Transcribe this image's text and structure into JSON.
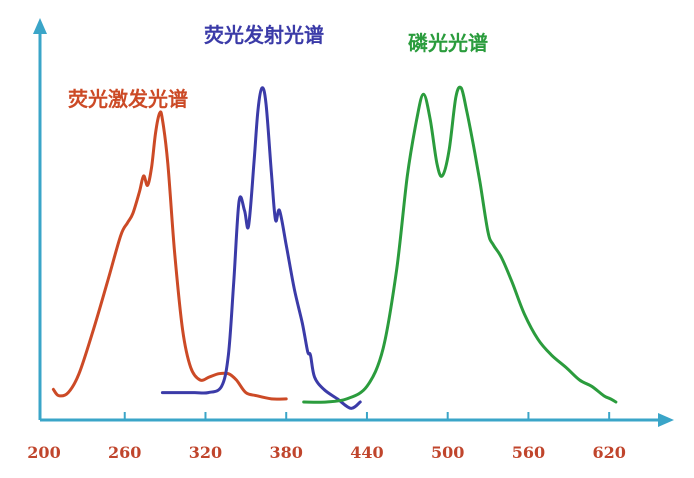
{
  "chart_data": {
    "type": "line",
    "title": "",
    "xlabel": "",
    "ylabel": "",
    "xlim": [
      200,
      660
    ],
    "ylim": [
      0,
      100
    ],
    "grid": false,
    "x_ticks": [
      200,
      260,
      320,
      380,
      440,
      500,
      560,
      620
    ],
    "series": [
      {
        "name": "荧光激发光谱",
        "color": "#cc4a26",
        "points": [
          [
            207,
            4
          ],
          [
            211,
            2
          ],
          [
            218,
            3
          ],
          [
            226,
            9
          ],
          [
            236,
            22
          ],
          [
            247,
            38
          ],
          [
            257,
            53
          ],
          [
            262,
            57
          ],
          [
            266,
            60
          ],
          [
            271,
            67
          ],
          [
            274,
            72
          ],
          [
            277,
            69
          ],
          [
            280,
            75
          ],
          [
            283,
            86
          ],
          [
            286,
            92
          ],
          [
            288,
            90
          ],
          [
            292,
            76
          ],
          [
            297,
            48
          ],
          [
            303,
            23
          ],
          [
            309,
            11
          ],
          [
            316,
            7
          ],
          [
            323,
            8
          ],
          [
            330,
            9
          ],
          [
            337,
            9
          ],
          [
            343,
            7
          ],
          [
            350,
            3
          ],
          [
            358,
            2
          ],
          [
            369,
            1
          ],
          [
            380,
            1
          ]
        ]
      },
      {
        "name": "荧光发射光谱",
        "color": "#3b3ba8",
        "points": [
          [
            288,
            3
          ],
          [
            300,
            3
          ],
          [
            312,
            3
          ],
          [
            322,
            3
          ],
          [
            332,
            5
          ],
          [
            337,
            15
          ],
          [
            341,
            38
          ],
          [
            345,
            64
          ],
          [
            349,
            61
          ],
          [
            352,
            56
          ],
          [
            356,
            76
          ],
          [
            359,
            93
          ],
          [
            362,
            100
          ],
          [
            365,
            95
          ],
          [
            369,
            73
          ],
          [
            372,
            58
          ],
          [
            375,
            61
          ],
          [
            380,
            50
          ],
          [
            386,
            36
          ],
          [
            392,
            25
          ],
          [
            396,
            16
          ],
          [
            398,
            15
          ],
          [
            401,
            8
          ],
          [
            408,
            4
          ],
          [
            418,
            1
          ],
          [
            428,
            -2
          ],
          [
            435,
            0
          ]
        ]
      },
      {
        "name": "磷光光谱",
        "color": "#2b9c3d",
        "points": [
          [
            393,
            0
          ],
          [
            410,
            0
          ],
          [
            425,
            1
          ],
          [
            440,
            5
          ],
          [
            452,
            17
          ],
          [
            462,
            42
          ],
          [
            470,
            72
          ],
          [
            477,
            90
          ],
          [
            482,
            98
          ],
          [
            487,
            90
          ],
          [
            492,
            76
          ],
          [
            496,
            72
          ],
          [
            501,
            80
          ],
          [
            506,
            97
          ],
          [
            510,
            100
          ],
          [
            514,
            93
          ],
          [
            519,
            82
          ],
          [
            524,
            70
          ],
          [
            530,
            54
          ],
          [
            534,
            50
          ],
          [
            540,
            46
          ],
          [
            548,
            38
          ],
          [
            557,
            28
          ],
          [
            567,
            20
          ],
          [
            577,
            15
          ],
          [
            588,
            11
          ],
          [
            598,
            7
          ],
          [
            607,
            5
          ],
          [
            616,
            2
          ],
          [
            621,
            1
          ],
          [
            625,
            0
          ]
        ]
      }
    ]
  }
}
